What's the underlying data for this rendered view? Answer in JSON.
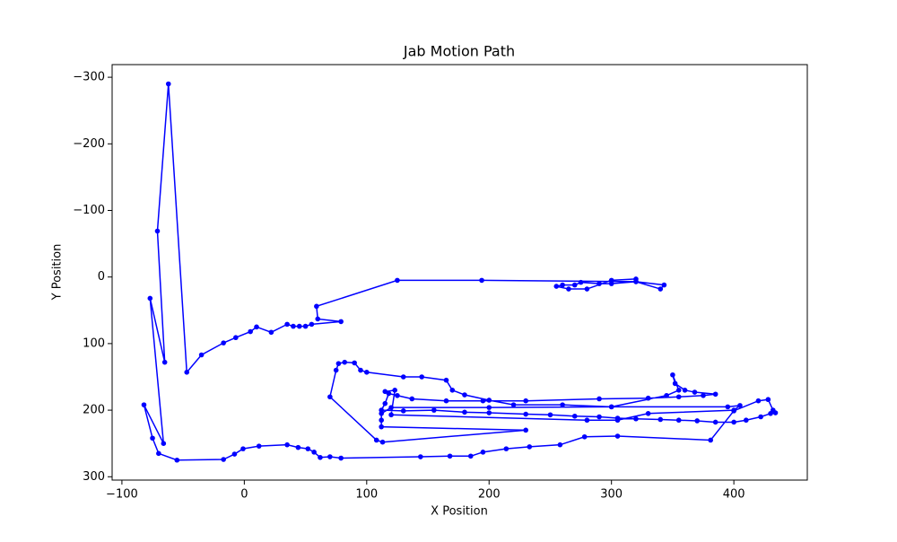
{
  "chart_data": {
    "type": "line",
    "title": "Jab Motion Path",
    "xlabel": "X Position",
    "ylabel": "Y Position",
    "x": [
      320,
      300,
      280,
      265,
      255,
      260,
      270,
      275,
      290,
      300,
      320,
      343,
      340,
      320,
      194,
      125,
      59,
      60,
      79,
      55,
      50,
      45,
      40,
      35,
      22,
      10,
      5,
      -7,
      -17,
      -35,
      -47,
      -62,
      -71,
      -65,
      -77,
      -66,
      -82,
      -75,
      -70,
      -55,
      -17,
      -8,
      -1,
      12,
      35,
      44,
      52,
      57,
      62,
      70,
      79,
      144,
      168,
      185,
      195,
      214,
      233,
      258,
      278,
      305,
      381,
      400,
      420,
      428,
      432,
      434,
      430,
      422,
      410,
      400,
      385,
      370,
      355,
      340,
      320,
      305,
      290,
      270,
      250,
      230,
      200,
      180,
      155,
      130,
      112,
      115,
      118,
      125,
      137,
      165,
      195,
      230,
      290,
      330,
      355,
      375,
      385,
      368,
      360,
      352,
      350,
      355,
      345,
      300,
      200,
      120,
      112,
      112,
      112,
      230,
      113,
      108,
      70,
      75,
      77,
      82,
      90,
      95,
      100,
      130,
      145,
      165,
      170,
      180,
      200,
      220,
      260,
      300,
      395,
      405,
      400,
      330,
      305,
      280,
      120,
      123,
      115
    ],
    "series": [
      {
        "color": "#0000ff",
        "values": [
          3,
          5,
          18,
          18,
          14,
          12,
          12,
          8,
          10,
          10,
          7,
          12,
          18,
          7,
          5,
          5,
          44,
          63,
          67,
          71,
          74,
          74,
          74,
          71,
          83,
          75,
          82,
          91,
          99,
          117,
          143,
          -290,
          -69,
          128,
          32,
          250,
          192,
          242,
          265,
          275,
          274,
          266,
          258,
          254,
          252,
          256,
          258,
          263,
          271,
          270,
          272,
          270,
          269,
          269,
          263,
          258,
          255,
          252,
          240,
          239,
          245,
          201,
          186,
          184,
          200,
          204,
          205,
          210,
          215,
          218,
          218,
          216,
          215,
          214,
          213,
          212,
          210,
          209,
          207,
          206,
          204,
          203,
          200,
          201,
          200,
          190,
          175,
          178,
          183,
          186,
          186,
          186,
          183,
          182,
          180,
          178,
          176,
          173,
          170,
          160,
          147,
          170,
          178,
          195,
          196,
          196,
          205,
          215,
          225,
          230,
          248,
          245,
          180,
          140,
          130,
          128,
          129,
          140,
          143,
          150,
          150,
          155,
          170,
          177,
          185,
          192,
          192,
          195,
          195,
          193,
          200,
          205,
          215,
          215,
          207,
          170,
          172
        ]
      }
    ],
    "xlim": [
      -108,
      460
    ],
    "ylim": [
      305,
      -319
    ],
    "xticks": [
      {
        "value": -100,
        "label": "−100"
      },
      0,
      100,
      200,
      300,
      400
    ],
    "yticks": [
      {
        "value": -300,
        "label": "−300"
      },
      {
        "value": -200,
        "label": "−200"
      },
      {
        "value": -100,
        "label": "−100"
      },
      0,
      100,
      200,
      300
    ]
  }
}
